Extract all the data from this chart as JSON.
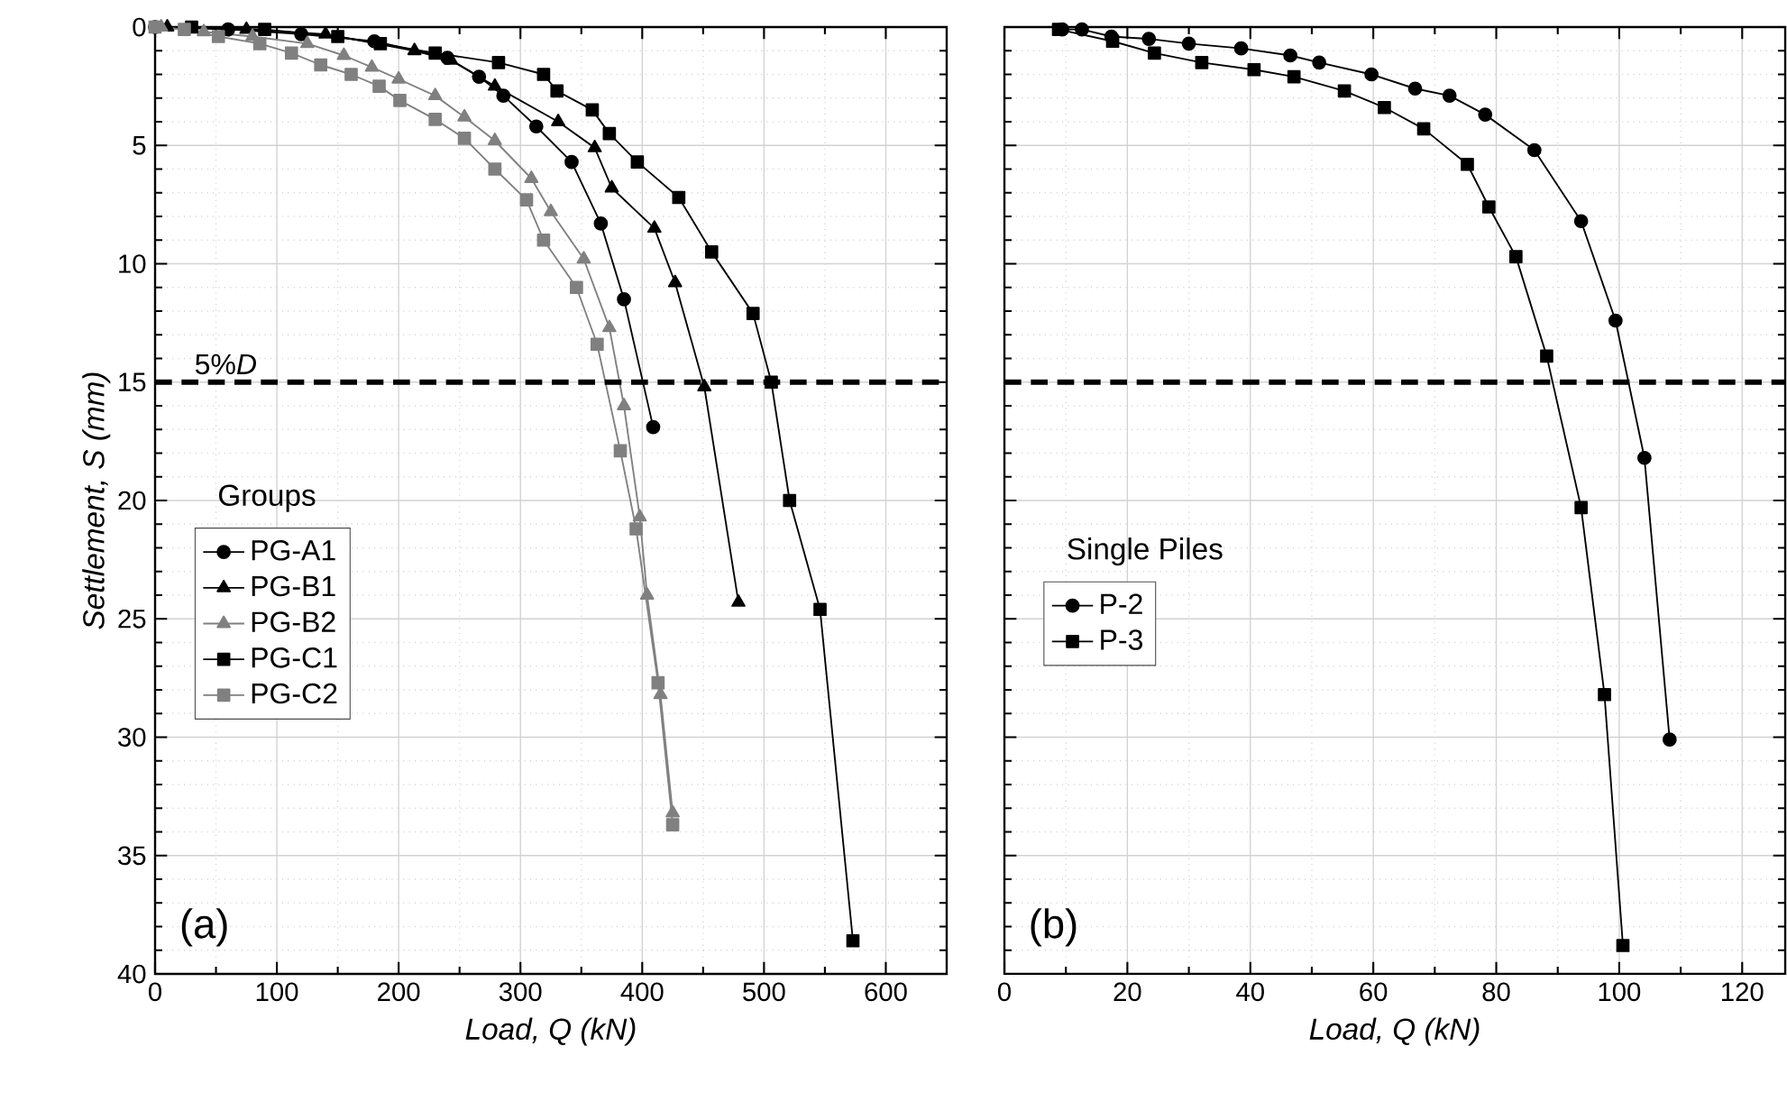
{
  "chart_data": [
    {
      "type": "line",
      "xlabel": "Load, Q (kN)",
      "ylabel": "Settlement, S (mm)",
      "xlim": [
        0,
        650
      ],
      "ylim": [
        40,
        0
      ],
      "xticks": [
        0,
        100,
        200,
        300,
        400,
        500,
        600
      ],
      "yticks": [
        0,
        5,
        10,
        15,
        20,
        25,
        30,
        35,
        40
      ],
      "grid": true,
      "legend": "left",
      "legend_title": "Groups",
      "ref_lines": [
        {
          "axis": "y",
          "value": 15,
          "label": "5%*D*",
          "line_style": "dashed",
          "color": "#000000"
        }
      ],
      "annotations": [
        "(a)"
      ],
      "series": [
        {
          "name": "PG-A1",
          "color": "#000000",
          "marker": "circle",
          "x": [
            0,
            60,
            120,
            180,
            240,
            266,
            286,
            313,
            342,
            366,
            385,
            409
          ],
          "values": [
            0,
            0.1,
            0.3,
            0.6,
            1.3,
            2.1,
            2.9,
            4.2,
            5.7,
            8.3,
            11.5,
            16.9
          ]
        },
        {
          "name": "PG-B1",
          "color": "#000000",
          "marker": "triangle",
          "x": [
            10,
            75,
            140,
            213,
            243,
            279,
            331,
            361,
            375,
            410,
            427,
            451,
            479
          ],
          "values": [
            0,
            0.1,
            0.3,
            1.0,
            1.4,
            2.5,
            4.0,
            5.1,
            6.8,
            8.5,
            10.8,
            15.2,
            24.3
          ]
        },
        {
          "name": "PG-B2",
          "color": "#808080",
          "marker": "triangle",
          "x": [
            5,
            40,
            80,
            125,
            155,
            178,
            200,
            230,
            254,
            279,
            309,
            325,
            352,
            373,
            385,
            398,
            404,
            415,
            425
          ],
          "values": [
            0,
            0.2,
            0.4,
            0.7,
            1.2,
            1.7,
            2.2,
            2.9,
            3.8,
            4.8,
            6.4,
            7.8,
            9.8,
            12.7,
            16.0,
            20.7,
            24.0,
            28.2,
            33.2
          ]
        },
        {
          "name": "PG-C1",
          "color": "#000000",
          "marker": "square",
          "x": [
            30,
            90,
            150,
            185,
            230,
            282,
            319,
            330,
            359,
            373,
            396,
            430,
            457,
            491,
            506,
            521,
            546,
            573
          ],
          "values": [
            0,
            0.1,
            0.4,
            0.7,
            1.1,
            1.5,
            2.0,
            2.7,
            3.5,
            4.5,
            5.7,
            7.2,
            9.5,
            12.1,
            15.0,
            20.0,
            24.6,
            38.6
          ]
        },
        {
          "name": "PG-C2",
          "color": "#808080",
          "marker": "square",
          "x": [
            0,
            24,
            52,
            86,
            112,
            136,
            161,
            184,
            201,
            230,
            254,
            279,
            305,
            319,
            346,
            363,
            382,
            395,
            413,
            425
          ],
          "values": [
            0,
            0.1,
            0.4,
            0.7,
            1.1,
            1.6,
            2.0,
            2.5,
            3.1,
            3.9,
            4.7,
            6.0,
            7.3,
            9.0,
            11.0,
            13.4,
            17.9,
            21.2,
            27.7,
            33.7
          ]
        }
      ]
    },
    {
      "type": "line",
      "xlabel": "Load, Q (kN)",
      "xlim": [
        0,
        127
      ],
      "ylim": [
        40,
        0
      ],
      "xticks": [
        0,
        20,
        40,
        60,
        80,
        100,
        120
      ],
      "yticks": [
        0,
        5,
        10,
        15,
        20,
        25,
        30,
        35,
        40
      ],
      "tick_labels": "x",
      "grid": true,
      "legend": "left",
      "legend_title": "Single Piles",
      "ref_lines": [
        {
          "axis": "y",
          "value": 15,
          "label": null,
          "line_style": "dashed",
          "color": "#000000"
        }
      ],
      "annotations": [
        "(b)"
      ],
      "series": [
        {
          "name": "P-2",
          "color": "#000000",
          "marker": "circle",
          "x": [
            9.4,
            12.6,
            17.4,
            23.5,
            30.0,
            38.5,
            46.5,
            51.2,
            59.7,
            66.8,
            72.4,
            78.2,
            86.2,
            93.8,
            99.4,
            104.1,
            108.2
          ],
          "values": [
            0.1,
            0.1,
            0.4,
            0.5,
            0.7,
            0.9,
            1.2,
            1.5,
            2.0,
            2.6,
            2.9,
            3.7,
            5.2,
            8.2,
            12.4,
            18.2,
            30.1
          ]
        },
        {
          "name": "P-3",
          "color": "#000000",
          "marker": "square",
          "x": [
            8.8,
            17.6,
            24.4,
            32.1,
            40.6,
            47.1,
            55.3,
            61.8,
            68.2,
            75.3,
            78.8,
            83.2,
            88.2,
            93.8,
            97.6,
            100.6
          ],
          "values": [
            0.1,
            0.6,
            1.1,
            1.5,
            1.8,
            2.1,
            2.7,
            3.4,
            4.3,
            5.8,
            7.6,
            9.7,
            13.9,
            20.3,
            28.2,
            38.8
          ]
        }
      ]
    }
  ]
}
